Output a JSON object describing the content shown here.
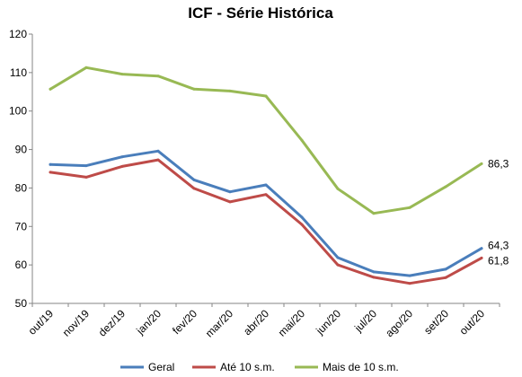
{
  "chart_data": {
    "type": "line",
    "title": "ICF - Série Histórica",
    "xlabel": "",
    "ylabel": "",
    "ylim": [
      50,
      120
    ],
    "yticks": [
      50,
      60,
      70,
      80,
      90,
      100,
      110,
      120
    ],
    "categories": [
      "out/19",
      "nov/19",
      "dez/19",
      "jan/20",
      "fev/20",
      "mar/20",
      "abr/20",
      "mai/20",
      "jun/20",
      "jul/20",
      "ago/20",
      "set/20",
      "out/20"
    ],
    "grid": false,
    "legend_position": "bottom",
    "series": [
      {
        "name": "Geral",
        "color": "#4a7ebb",
        "values": [
          86.1,
          85.8,
          88.1,
          89.6,
          82.1,
          79.0,
          80.8,
          72.4,
          61.9,
          58.2,
          57.2,
          58.9,
          64.3
        ],
        "end_label": "64,3"
      },
      {
        "name": "Até 10 s.m.",
        "color": "#be4b48",
        "values": [
          84.1,
          82.8,
          85.6,
          87.3,
          79.9,
          76.4,
          78.3,
          70.5,
          60.0,
          56.8,
          55.2,
          56.7,
          61.8
        ],
        "end_label": "61,8"
      },
      {
        "name": "Mais de 10 s.m.",
        "color": "#98b954",
        "values": [
          105.7,
          111.3,
          109.6,
          109.1,
          105.7,
          105.2,
          103.9,
          92.4,
          79.8,
          73.4,
          74.9,
          80.3,
          86.3
        ],
        "end_label": "86,3"
      }
    ]
  }
}
